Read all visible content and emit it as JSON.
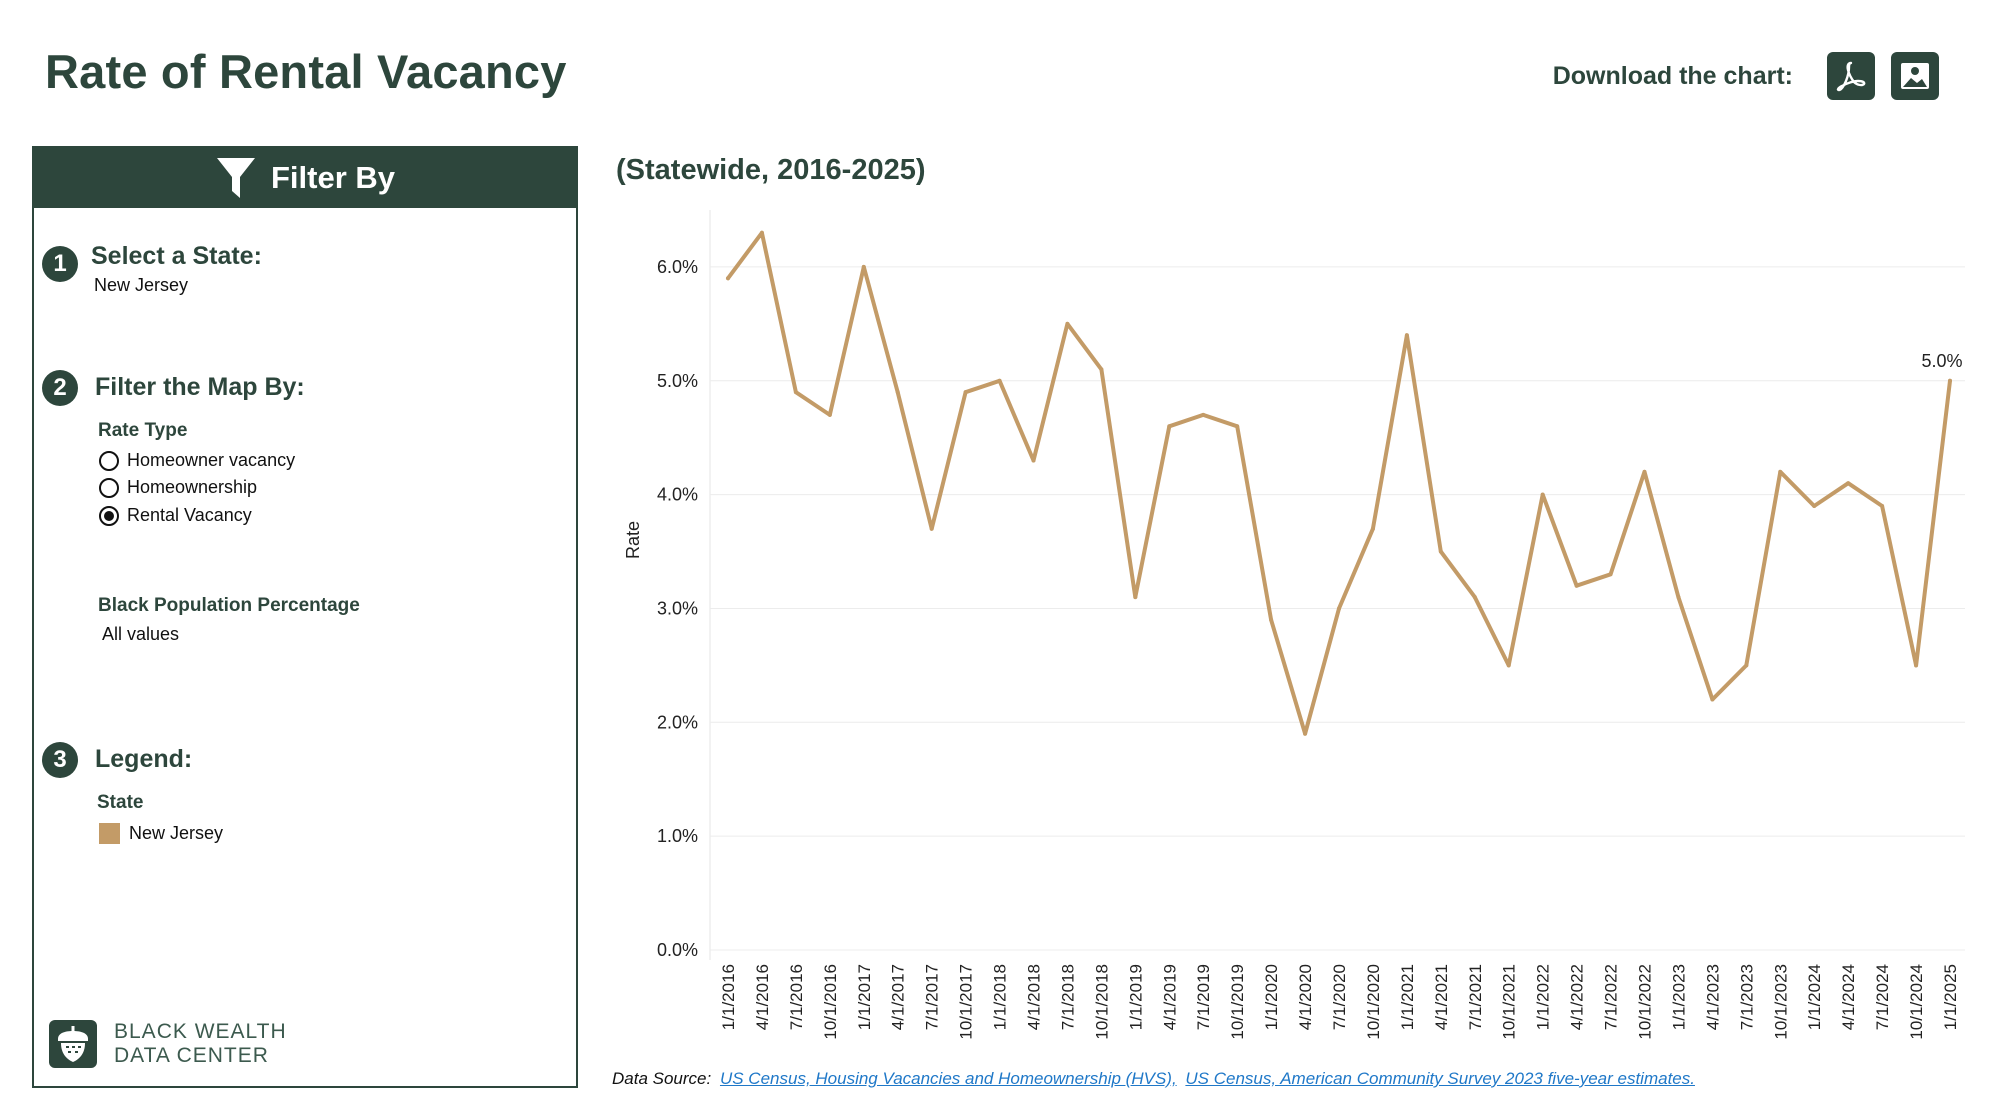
{
  "page": {
    "title": "Rate of Rental Vacancy"
  },
  "download": {
    "label": "Download the chart:",
    "pdf_icon": "pdf-icon",
    "image_icon": "image-icon"
  },
  "filter": {
    "header": "Filter By",
    "icon": "funnel-icon",
    "step1": {
      "number": "1",
      "title": "Select a State:",
      "value": "New Jersey"
    },
    "step2": {
      "number": "2",
      "title": "Filter the Map By:",
      "rate_type_label": "Rate Type",
      "options": [
        {
          "label": "Homeowner vacancy",
          "checked": false
        },
        {
          "label": "Homeownership",
          "checked": false
        },
        {
          "label": "Rental Vacancy",
          "checked": true
        }
      ],
      "black_pop_label": "Black Population Percentage",
      "black_pop_value": "All values"
    },
    "step3": {
      "number": "3",
      "title": "Legend:",
      "legend_title": "State",
      "legend_items": [
        {
          "label": "New Jersey",
          "color": "#c39b67"
        }
      ]
    }
  },
  "brand": {
    "line1": "BLACK WEALTH",
    "line2": "DATA CENTER",
    "icon": "acorn-icon"
  },
  "chart": {
    "subtitle": "(Statewide, 2016-2025)"
  },
  "chart_data": {
    "type": "line",
    "ylabel": "Rate",
    "ylim": [
      0,
      6.5
    ],
    "yticks": [
      0,
      1,
      2,
      3,
      4,
      5,
      6
    ],
    "ytick_labels": [
      "0.0%",
      "1.0%",
      "2.0%",
      "3.0%",
      "4.0%",
      "5.0%",
      "6.0%"
    ],
    "grid": true,
    "x": [
      "1/1/2016",
      "4/1/2016",
      "7/1/2016",
      "10/1/2016",
      "1/1/2017",
      "4/1/2017",
      "7/1/2017",
      "10/1/2017",
      "1/1/2018",
      "4/1/2018",
      "7/1/2018",
      "10/1/2018",
      "1/1/2019",
      "4/1/2019",
      "7/1/2019",
      "10/1/2019",
      "1/1/2020",
      "4/1/2020",
      "7/1/2020",
      "10/1/2020",
      "1/1/2021",
      "4/1/2021",
      "7/1/2021",
      "10/1/2021",
      "1/1/2022",
      "4/1/2022",
      "7/1/2022",
      "10/1/2022",
      "1/1/2023",
      "4/1/2023",
      "7/1/2023",
      "10/1/2023",
      "1/1/2024",
      "4/1/2024",
      "7/1/2024",
      "10/1/2024",
      "1/1/2025"
    ],
    "series": [
      {
        "name": "New Jersey",
        "color": "#c39b67",
        "values": [
          5.9,
          6.3,
          4.9,
          4.7,
          6.0,
          4.9,
          3.7,
          4.9,
          5.0,
          4.3,
          5.5,
          5.1,
          3.1,
          4.6,
          4.7,
          4.6,
          2.9,
          1.9,
          3.0,
          3.7,
          5.4,
          3.5,
          3.1,
          2.5,
          4.0,
          3.2,
          3.3,
          4.2,
          3.1,
          2.2,
          2.5,
          4.2,
          3.9,
          4.1,
          3.9,
          2.5,
          5.0
        ]
      }
    ],
    "end_label": "5.0%"
  },
  "data_source": {
    "label": "Data Source:",
    "link1": "US Census, Housing Vacancies and Homeownership (HVS),",
    "link2": "US Census, American Community Survey 2023 five-year estimates."
  }
}
